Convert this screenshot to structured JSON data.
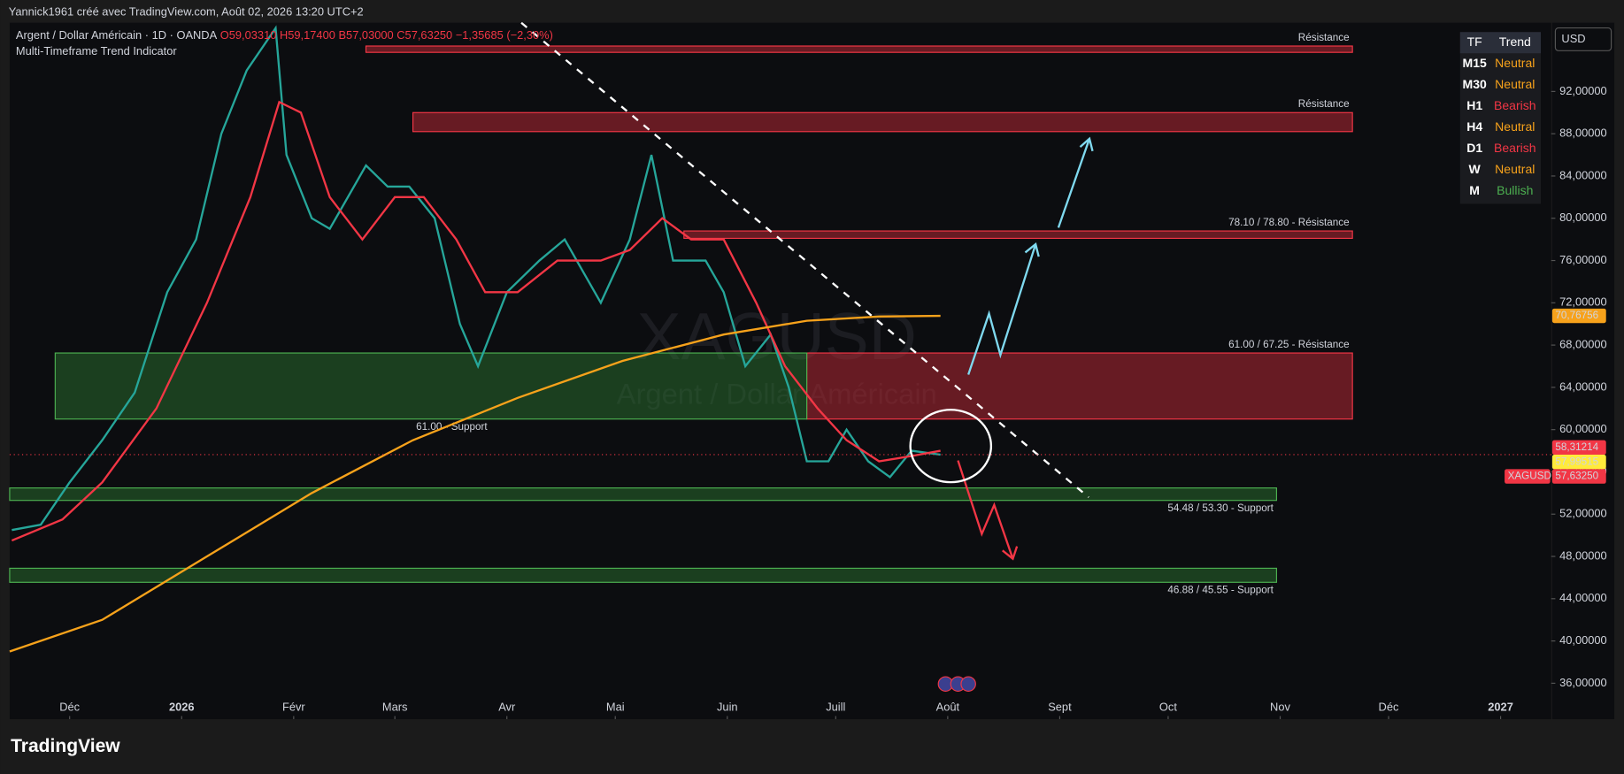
{
  "header": {
    "author": "Yannick1961 créé avec TradingView.com, Août 02, 2026 13:20 UTC+2"
  },
  "legend": {
    "symbol": "Argent / Dollar Américain · 1D · OANDA",
    "open": "O59,03310",
    "high": "H59,17400",
    "low": "B57,03000",
    "close": "C57,63250",
    "change": "−1,35685 (−2,30%)",
    "indicator": "Multi-Timeframe Trend Indicator"
  },
  "watermark": {
    "symbol": "XAGUSD",
    "name": "Argent / Dollar Américain"
  },
  "currency": "USD",
  "trend_table": {
    "headers": [
      "TF",
      "Trend"
    ],
    "rows": [
      {
        "tf": "M15",
        "trend": "Neutral",
        "color": "#f7a21b"
      },
      {
        "tf": "M30",
        "trend": "Neutral",
        "color": "#f7a21b"
      },
      {
        "tf": "H1",
        "trend": "Bearish",
        "color": "#f23645"
      },
      {
        "tf": "H4",
        "trend": "Neutral",
        "color": "#f7a21b"
      },
      {
        "tf": "D1",
        "trend": "Bearish",
        "color": "#f23645"
      },
      {
        "tf": "W",
        "trend": "Neutral",
        "color": "#f7a21b"
      },
      {
        "tf": "M",
        "trend": "Bullish",
        "color": "#4caf50"
      }
    ]
  },
  "footer": {
    "brand": "TradingView"
  },
  "chart_data": {
    "type": "line",
    "xlim": [
      -16.6,
      410
    ],
    "ylim": [
      32.6,
      98.5
    ],
    "xticks": [
      {
        "value": 0,
        "label": "Déc"
      },
      {
        "value": 31,
        "label": "2026"
      },
      {
        "value": 62,
        "label": "Févr"
      },
      {
        "value": 90,
        "label": "Mars"
      },
      {
        "value": 121,
        "label": "Avr"
      },
      {
        "value": 151,
        "label": "Mai"
      },
      {
        "value": 182,
        "label": "Juin"
      },
      {
        "value": 212,
        "label": "Juill"
      },
      {
        "value": 243,
        "label": "Août"
      },
      {
        "value": 274,
        "label": "Sept"
      },
      {
        "value": 304,
        "label": "Oct"
      },
      {
        "value": 335,
        "label": "Nov"
      },
      {
        "value": 365,
        "label": "Déc"
      },
      {
        "value": 396,
        "label": "2027"
      }
    ],
    "yticks": [
      {
        "value": 36,
        "label": "36,00000"
      },
      {
        "value": 40,
        "label": "40,00000"
      },
      {
        "value": 44,
        "label": "44,00000"
      },
      {
        "value": 48,
        "label": "48,00000"
      },
      {
        "value": 52,
        "label": "52,00000"
      },
      {
        "value": 56,
        "label": "56,00000"
      },
      {
        "value": 60,
        "label": "60,00000"
      },
      {
        "value": 64,
        "label": "64,00000"
      },
      {
        "value": 68,
        "label": "68,00000"
      },
      {
        "value": 72,
        "label": "72,00000"
      },
      {
        "value": 76,
        "label": "76,00000"
      },
      {
        "value": 80,
        "label": "80,00000"
      },
      {
        "value": 84,
        "label": "84,00000"
      },
      {
        "value": 88,
        "label": "88,00000"
      },
      {
        "value": 92,
        "label": "92,00000"
      }
    ],
    "series": [
      {
        "name": "XAGUSD",
        "color": "#26a69a",
        "x": [
          -16,
          -8,
          0,
          9,
          18,
          27,
          35,
          42,
          49,
          57,
          60,
          67,
          72,
          82,
          88,
          94,
          101,
          108,
          113,
          121,
          130,
          137,
          147,
          155,
          161,
          167,
          176,
          181,
          187,
          194,
          199,
          204,
          210,
          215,
          221,
          227,
          233,
          241
        ],
        "values": [
          50.5,
          51,
          55,
          59,
          63.5,
          73,
          78,
          88,
          94,
          98,
          86,
          80,
          79,
          85,
          83,
          83,
          80,
          70,
          66,
          73,
          76,
          78,
          72,
          78,
          86,
          76,
          76,
          73,
          66,
          69,
          64,
          57,
          57,
          60,
          57,
          55.5,
          58,
          57.6325
        ]
      },
      {
        "name": "EMA",
        "color": "#f23645",
        "x": [
          -16,
          -2,
          9,
          24,
          38,
          50,
          58,
          64,
          72,
          81,
          90,
          98,
          107,
          115,
          124,
          135,
          147,
          155,
          164,
          172,
          181,
          190,
          198,
          207,
          215,
          224,
          233,
          241
        ],
        "values": [
          49.5,
          51.5,
          55,
          62,
          72,
          82,
          91,
          90,
          82,
          78,
          82,
          82,
          78,
          73,
          73,
          76,
          76,
          77,
          80,
          78,
          78,
          72,
          66,
          62,
          59,
          57,
          57.5,
          58
        ]
      },
      {
        "name": "MA 200",
        "color": "#f7a21b",
        "x": [
          -16.6,
          9,
          38,
          67,
          95,
          124,
          153,
          181,
          204,
          224,
          241
        ],
        "values": [
          39,
          42,
          48,
          54,
          59,
          63,
          66.5,
          69,
          70.3,
          70.7,
          70.76756
        ]
      }
    ],
    "zones": [
      {
        "label": "Résistance",
        "start": 82,
        "end": 355,
        "low": 95.7,
        "high": 96.3,
        "color": "#b22833"
      },
      {
        "label": "Résistance",
        "start": 95,
        "end": 355,
        "low": 88.2,
        "high": 90,
        "color": "#b22833"
      },
      {
        "label": "78.10 / 78.80 - Résistance",
        "start": 170,
        "end": 355,
        "low": 78.1,
        "high": 78.8,
        "color": "#b22833"
      },
      {
        "label": "61.00 / 67.25  - Résistance",
        "start": 204,
        "end": 355,
        "low": 61,
        "high": 67.25,
        "color": "#b22833"
      },
      {
        "label": "61.00 - Support",
        "start": -4,
        "end": 204,
        "low": 61,
        "high": 67.25,
        "color": "#2e7d32"
      },
      {
        "label": "54.48 / 53.30 - Support",
        "start": -16.6,
        "end": 334,
        "low": 53.3,
        "high": 54.48,
        "color": "#2e7d32"
      },
      {
        "label": "46.88 / 45.55 - Support",
        "start": -16.6,
        "end": 334,
        "low": 45.55,
        "high": 46.88,
        "color": "#2e7d32"
      }
    ],
    "trendline": {
      "start": [
        125,
        98.5
      ],
      "end": [
        282,
        53.6
      ]
    },
    "price_labels": [
      {
        "value": 70.76756,
        "label": "70,76756",
        "color": "#f7a21b"
      },
      {
        "value": 58.31214,
        "label": "58,31214",
        "color": "#f23645"
      },
      {
        "value": 57.99515,
        "label": "57,99515",
        "color": "#ffeb3b"
      },
      {
        "name": "XAGUSD",
        "value": 57.6325,
        "label": "57,63250",
        "color": "#f23645"
      }
    ]
  }
}
